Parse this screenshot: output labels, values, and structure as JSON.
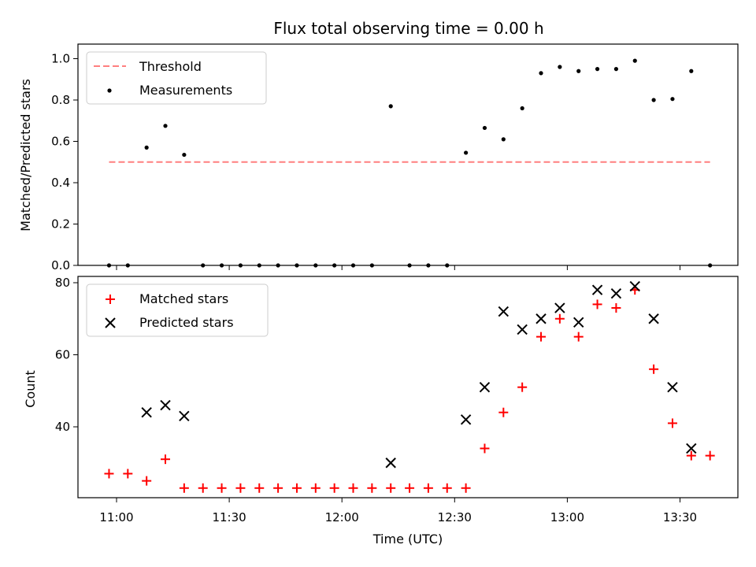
{
  "title": "Flux total observing time = 0.00 h",
  "colors": {
    "threshold": "#ff7f7f",
    "measure": "#000000",
    "matched": "#ff0000",
    "predicted": "#000000"
  },
  "chart_data": [
    {
      "type": "scatter",
      "ylabel": "Matched/Predicted stars",
      "ylim": [
        0,
        1.04
      ],
      "yticks": [
        "0.0",
        "0.2",
        "0.4",
        "0.6",
        "0.8",
        "1.0"
      ],
      "xlim": [
        "10:58",
        "13:38"
      ],
      "legend": {
        "placement": "top-left",
        "entries": [
          "Threshold",
          "Measurements"
        ]
      },
      "threshold": {
        "name": "Threshold",
        "y": 0.5,
        "x_start": "10:58",
        "x_end": "13:38",
        "style": "dashed"
      },
      "series": [
        {
          "name": "Measurements",
          "points": [
            [
              "10:58",
              0.0
            ],
            [
              "11:03",
              0.0
            ],
            [
              "11:08",
              0.57
            ],
            [
              "11:13",
              0.675
            ],
            [
              "11:18",
              0.535
            ],
            [
              "11:23",
              0.0
            ],
            [
              "11:28",
              0.0
            ],
            [
              "11:33",
              0.0
            ],
            [
              "11:38",
              0.0
            ],
            [
              "11:43",
              0.0
            ],
            [
              "11:48",
              0.0
            ],
            [
              "11:53",
              0.0
            ],
            [
              "11:58",
              0.0
            ],
            [
              "12:03",
              0.0
            ],
            [
              "12:08",
              0.0
            ],
            [
              "12:13",
              0.77
            ],
            [
              "12:18",
              0.0
            ],
            [
              "12:23",
              0.0
            ],
            [
              "12:28",
              0.0
            ],
            [
              "12:33",
              0.545
            ],
            [
              "12:38",
              0.665
            ],
            [
              "12:43",
              0.61
            ],
            [
              "12:48",
              0.76
            ],
            [
              "12:53",
              0.93
            ],
            [
              "12:58",
              0.96
            ],
            [
              "13:03",
              0.94
            ],
            [
              "13:08",
              0.95
            ],
            [
              "13:13",
              0.95
            ],
            [
              "13:18",
              0.99
            ],
            [
              "13:23",
              0.8
            ],
            [
              "13:28",
              0.805
            ],
            [
              "13:33",
              0.94
            ],
            [
              "13:38",
              0.0
            ]
          ]
        }
      ]
    },
    {
      "type": "scatter",
      "xlabel": "Time (UTC)",
      "ylabel": "Count",
      "ylim": [
        21,
        81
      ],
      "yticks": [
        "40",
        "60",
        "80"
      ],
      "xticks": [
        "11:00",
        "11:30",
        "12:00",
        "12:30",
        "13:00",
        "13:30"
      ],
      "legend": {
        "placement": "top-left",
        "entries": [
          "Matched stars",
          "Predicted stars"
        ]
      },
      "series": [
        {
          "name": "Matched stars",
          "marker": "+",
          "points": [
            [
              "10:58",
              27
            ],
            [
              "11:03",
              27
            ],
            [
              "11:08",
              25
            ],
            [
              "11:13",
              31
            ],
            [
              "11:18",
              23
            ],
            [
              "11:23",
              23
            ],
            [
              "11:28",
              23
            ],
            [
              "11:33",
              23
            ],
            [
              "11:38",
              23
            ],
            [
              "11:43",
              23
            ],
            [
              "11:48",
              23
            ],
            [
              "11:53",
              23
            ],
            [
              "11:58",
              23
            ],
            [
              "12:03",
              23
            ],
            [
              "12:08",
              23
            ],
            [
              "12:13",
              23
            ],
            [
              "12:18",
              23
            ],
            [
              "12:23",
              23
            ],
            [
              "12:28",
              23
            ],
            [
              "12:33",
              23
            ],
            [
              "12:38",
              34
            ],
            [
              "12:43",
              44
            ],
            [
              "12:48",
              51
            ],
            [
              "12:53",
              65
            ],
            [
              "12:58",
              70
            ],
            [
              "13:03",
              65
            ],
            [
              "13:08",
              74
            ],
            [
              "13:13",
              73
            ],
            [
              "13:18",
              78
            ],
            [
              "13:23",
              56
            ],
            [
              "13:28",
              41
            ],
            [
              "13:33",
              32
            ],
            [
              "13:38",
              32
            ]
          ]
        },
        {
          "name": "Predicted stars",
          "marker": "x",
          "points": [
            [
              "11:08",
              44
            ],
            [
              "11:13",
              46
            ],
            [
              "11:18",
              43
            ],
            [
              "12:13",
              30
            ],
            [
              "12:33",
              42
            ],
            [
              "12:38",
              51
            ],
            [
              "12:43",
              72
            ],
            [
              "12:48",
              67
            ],
            [
              "12:53",
              70
            ],
            [
              "12:58",
              73
            ],
            [
              "13:03",
              69
            ],
            [
              "13:08",
              78
            ],
            [
              "13:13",
              77
            ],
            [
              "13:18",
              79
            ],
            [
              "13:23",
              70
            ],
            [
              "13:28",
              51
            ],
            [
              "13:33",
              34
            ]
          ]
        }
      ]
    }
  ]
}
